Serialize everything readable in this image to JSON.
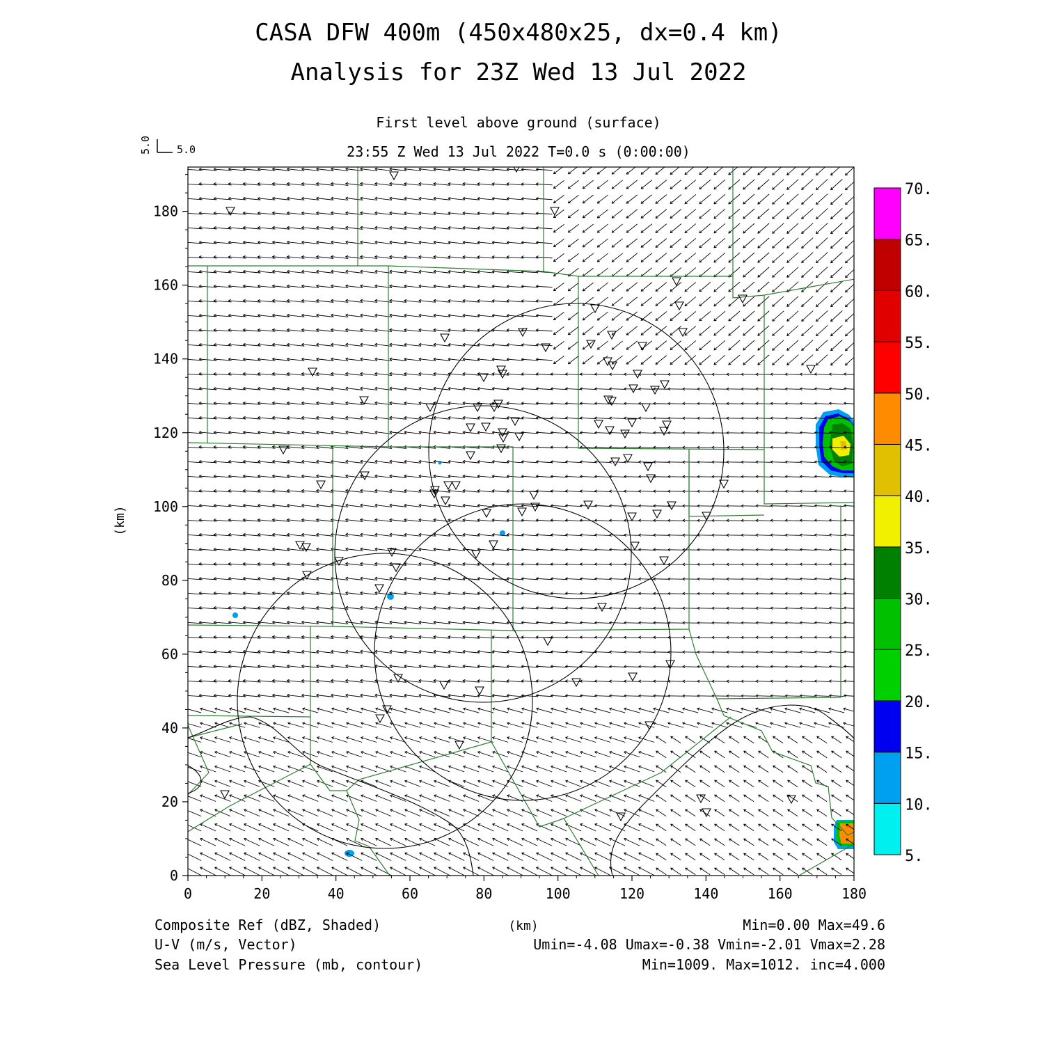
{
  "header": {
    "title": "CASA DFW 400m (450x480x25, dx=0.4 km)",
    "subtitle": "Analysis for 23Z Wed 13 Jul 2022",
    "level": "First level above ground (surface)",
    "time": "23:55 Z Wed 13 Jul 2022   T=0.0 s (0:00:00)",
    "vector_key_u": "5.0",
    "vector_key_v": "5.0"
  },
  "axes": {
    "x_ticks": [
      "0",
      "20",
      "40",
      "60",
      "80",
      "100",
      "120",
      "140",
      "160",
      "180"
    ],
    "y_ticks": [
      "0",
      "20",
      "40",
      "60",
      "80",
      "100",
      "120",
      "140",
      "160",
      "180"
    ],
    "x_unit": "(km)",
    "y_unit": "(km)",
    "x_range": [
      0,
      180
    ],
    "y_range": [
      0,
      192
    ]
  },
  "colorbar": {
    "labels": [
      "5.",
      "10.",
      "15.",
      "20.",
      "25.",
      "30.",
      "35.",
      "40.",
      "45.",
      "50.",
      "55.",
      "60.",
      "65.",
      "70."
    ],
    "colors": [
      "#00f0f0",
      "#00a0f0",
      "#0000f0",
      "#00d000",
      "#00c000",
      "#008000",
      "#f0f000",
      "#e0c000",
      "#ff8c00",
      "#ff0000",
      "#e00000",
      "#c00000",
      "#ff00ff"
    ]
  },
  "footer": {
    "field1": "Composite Ref (dBZ, Shaded)",
    "field1_stats": "Min=0.00 Max=49.6",
    "field2": "U-V (m/s, Vector)",
    "field2_stats": "Umin=-4.08 Umax=-0.38 Vmin=-2.01 Vmax=2.28",
    "field3": "Sea Level Pressure (mb, contour)",
    "field3_stats": "Min=1009. Max=1012. inc=4.000"
  },
  "colors": {
    "boundary": "#2e7d32",
    "vectors": "#000000"
  }
}
